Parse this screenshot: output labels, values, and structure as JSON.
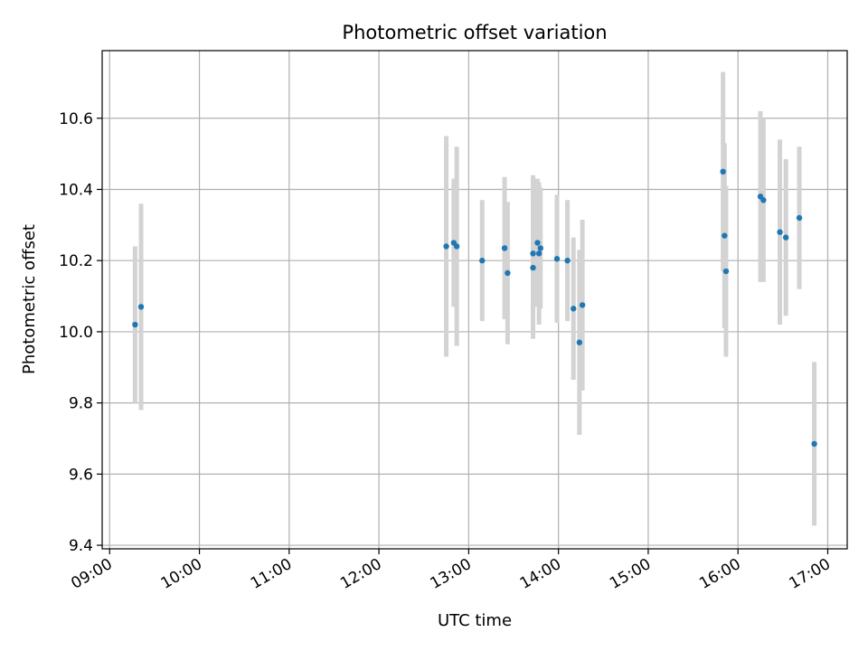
{
  "chart_data": {
    "type": "scatter",
    "title": "Photometric offset variation",
    "xlabel": "UTC time",
    "ylabel": "Photometric offset",
    "grid": true,
    "colors": {
      "point": "#1f77b4",
      "errorbar": "#d3d3d3",
      "grid": "#b0b0b0"
    },
    "xlim": [
      "08:55",
      "17:13"
    ],
    "ylim": [
      9.39,
      10.79
    ],
    "x_ticks": [
      "09:00",
      "10:00",
      "11:00",
      "12:00",
      "13:00",
      "14:00",
      "15:00",
      "16:00",
      "17:00"
    ],
    "y_ticks": [
      "9.4",
      "9.6",
      "9.8",
      "10.0",
      "10.2",
      "10.4",
      "10.6"
    ],
    "points": [
      {
        "x": "09:17",
        "y": 10.02,
        "err": 0.22
      },
      {
        "x": "09:21",
        "y": 10.07,
        "err": 0.29
      },
      {
        "x": "12:45",
        "y": 10.24,
        "err": 0.31
      },
      {
        "x": "12:50",
        "y": 10.25,
        "err": 0.18
      },
      {
        "x": "12:52",
        "y": 10.24,
        "err": 0.28
      },
      {
        "x": "13:09",
        "y": 10.2,
        "err": 0.17
      },
      {
        "x": "13:24",
        "y": 10.235,
        "err": 0.2
      },
      {
        "x": "13:26",
        "y": 10.165,
        "err": 0.2
      },
      {
        "x": "13:43",
        "y": 10.22,
        "err": 0.22
      },
      {
        "x": "13:43",
        "y": 10.18,
        "err": 0.2
      },
      {
        "x": "13:46",
        "y": 10.25,
        "err": 0.18
      },
      {
        "x": "13:47",
        "y": 10.22,
        "err": 0.2
      },
      {
        "x": "13:48",
        "y": 10.235,
        "err": 0.17
      },
      {
        "x": "13:59",
        "y": 10.205,
        "err": 0.18
      },
      {
        "x": "14:06",
        "y": 10.2,
        "err": 0.17
      },
      {
        "x": "14:10",
        "y": 10.065,
        "err": 0.2
      },
      {
        "x": "14:14",
        "y": 9.97,
        "err": 0.26
      },
      {
        "x": "14:16",
        "y": 10.075,
        "err": 0.24
      },
      {
        "x": "15:50",
        "y": 10.45,
        "err": 0.28
      },
      {
        "x": "15:51",
        "y": 10.27,
        "err": 0.26
      },
      {
        "x": "15:52",
        "y": 10.17,
        "err": 0.24
      },
      {
        "x": "16:15",
        "y": 10.38,
        "err": 0.24
      },
      {
        "x": "16:17",
        "y": 10.37,
        "err": 0.23
      },
      {
        "x": "16:28",
        "y": 10.28,
        "err": 0.26
      },
      {
        "x": "16:32",
        "y": 10.265,
        "err": 0.22
      },
      {
        "x": "16:41",
        "y": 10.32,
        "err": 0.2
      },
      {
        "x": "16:51",
        "y": 9.685,
        "err": 0.23
      }
    ]
  }
}
